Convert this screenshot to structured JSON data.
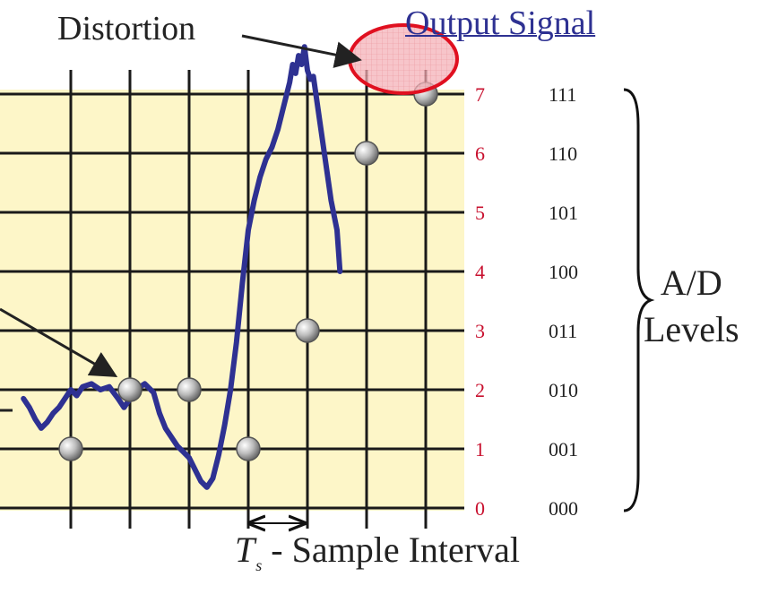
{
  "annotations": {
    "distortion": "Distortion",
    "output_signal": "Output Signal",
    "ad_levels_line1": "A/D",
    "ad_levels_line2": "Levels",
    "ts_symbol": "T",
    "ts_subscript": "s",
    "ts_text": " - Sample Interval"
  },
  "levels": [
    {
      "value": "0",
      "code": "000"
    },
    {
      "value": "1",
      "code": "001"
    },
    {
      "value": "2",
      "code": "010"
    },
    {
      "value": "3",
      "code": "011"
    },
    {
      "value": "4",
      "code": "100"
    },
    {
      "value": "5",
      "code": "101"
    },
    {
      "value": "6",
      "code": "110"
    },
    {
      "value": "7",
      "code": "111"
    }
  ],
  "samples": [
    {
      "t": 1,
      "level": 1
    },
    {
      "t": 2,
      "level": 2
    },
    {
      "t": 3,
      "level": 2
    },
    {
      "t": 4,
      "level": 1
    },
    {
      "t": 5,
      "level": 3
    },
    {
      "t": 6,
      "level": 6
    },
    {
      "t": 7,
      "level": 7
    }
  ],
  "signal": [
    [
      0.2,
      1.85
    ],
    [
      0.3,
      1.7
    ],
    [
      0.4,
      1.5
    ],
    [
      0.5,
      1.35
    ],
    [
      0.6,
      1.45
    ],
    [
      0.7,
      1.6
    ],
    [
      0.8,
      1.7
    ],
    [
      0.9,
      1.85
    ],
    [
      1.0,
      2.0
    ],
    [
      1.1,
      1.9
    ],
    [
      1.2,
      2.05
    ],
    [
      1.35,
      2.1
    ],
    [
      1.5,
      2.0
    ],
    [
      1.65,
      2.05
    ],
    [
      1.8,
      1.85
    ],
    [
      1.9,
      1.7
    ],
    [
      2.0,
      1.85
    ],
    [
      2.1,
      2.0
    ],
    [
      2.25,
      2.1
    ],
    [
      2.4,
      1.95
    ],
    [
      2.5,
      1.6
    ],
    [
      2.6,
      1.35
    ],
    [
      2.7,
      1.2
    ],
    [
      2.8,
      1.05
    ],
    [
      2.9,
      0.95
    ],
    [
      3.0,
      0.85
    ],
    [
      3.1,
      0.65
    ],
    [
      3.2,
      0.45
    ],
    [
      3.3,
      0.35
    ],
    [
      3.4,
      0.5
    ],
    [
      3.5,
      0.9
    ],
    [
      3.6,
      1.4
    ],
    [
      3.7,
      2.0
    ],
    [
      3.8,
      2.8
    ],
    [
      3.9,
      3.8
    ],
    [
      4.0,
      4.7
    ],
    [
      4.1,
      5.2
    ],
    [
      4.2,
      5.6
    ],
    [
      4.3,
      5.9
    ],
    [
      4.4,
      6.1
    ],
    [
      4.5,
      6.4
    ],
    [
      4.6,
      6.8
    ],
    [
      4.7,
      7.2
    ],
    [
      4.75,
      7.5
    ],
    [
      4.8,
      7.35
    ],
    [
      4.85,
      7.65
    ],
    [
      4.9,
      7.5
    ],
    [
      4.95,
      7.8
    ],
    [
      5.0,
      7.4
    ],
    [
      5.05,
      7.25
    ],
    [
      5.1,
      7.3
    ],
    [
      5.2,
      6.6
    ],
    [
      5.3,
      5.9
    ],
    [
      5.4,
      5.2
    ],
    [
      5.5,
      4.7
    ],
    [
      5.55,
      4.0
    ]
  ],
  "colors": {
    "background": "#fdf6c8",
    "grid": "#1a1a1a",
    "signal": "#2e3192",
    "level_numbers": "#c8102e",
    "highlight_fill": "#f2a0a8",
    "highlight_stroke": "#e01020",
    "sample_dot": "#b5b5b5"
  }
}
